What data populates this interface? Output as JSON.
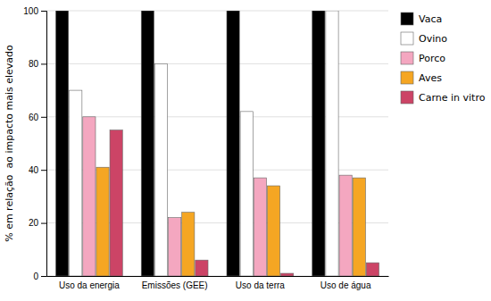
{
  "chart_data": {
    "type": "bar",
    "categories": [
      "Uso da energia",
      "Emissões (GEE)",
      "Uso da terra",
      "Uso de água"
    ],
    "series": [
      {
        "name": "Vaca",
        "color": "#000000",
        "values": [
          100,
          100,
          100,
          100
        ]
      },
      {
        "name": "Ovino",
        "color": "#ffffff",
        "values": [
          70,
          80,
          62,
          100
        ]
      },
      {
        "name": "Porco",
        "color": "#f4a7c0",
        "values": [
          60,
          22,
          37,
          38
        ]
      },
      {
        "name": "Aves",
        "color": "#f5a623",
        "values": [
          41,
          24,
          34,
          37
        ]
      },
      {
        "name": "Carne in vitro",
        "color": "#cc4466",
        "values": [
          55,
          6,
          1,
          5
        ]
      }
    ],
    "ylabel": "% em relação  ao impacto mais elevado",
    "ylim": [
      0,
      100
    ],
    "yticks": [
      0,
      20,
      40,
      60,
      80,
      100
    ],
    "grid": true,
    "legend": "right"
  }
}
